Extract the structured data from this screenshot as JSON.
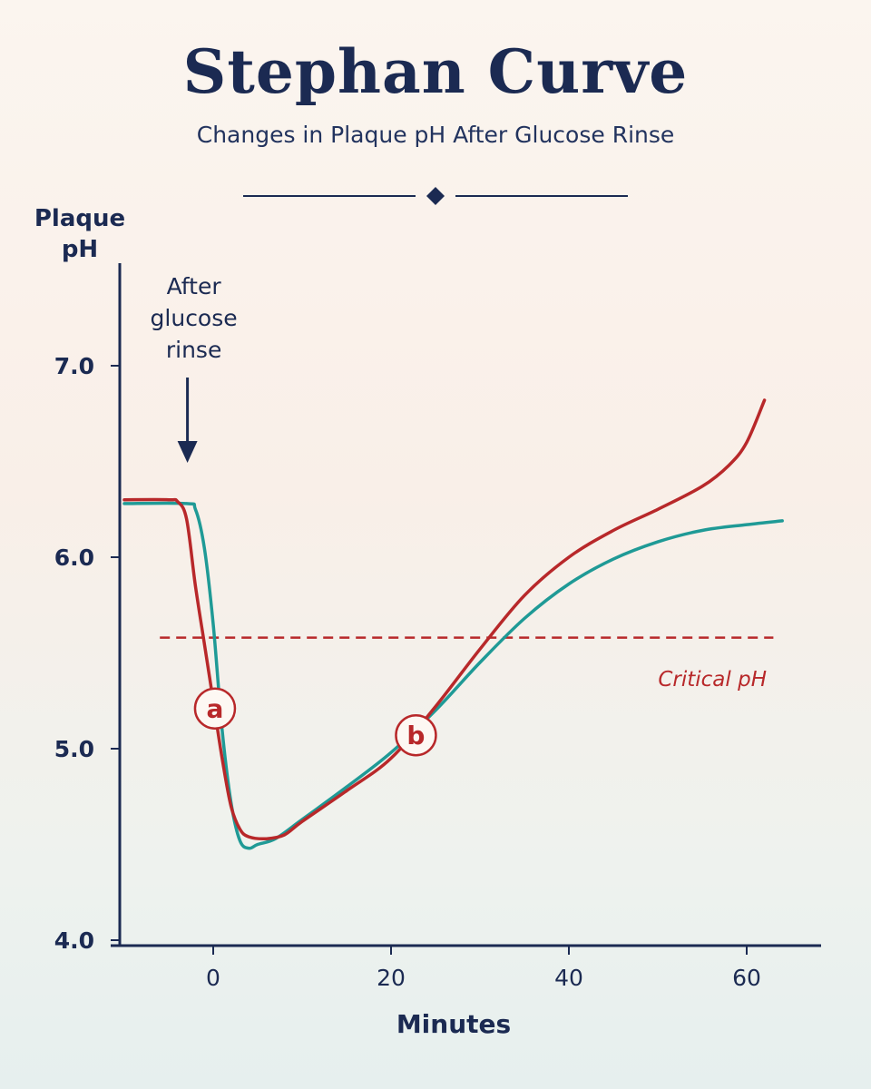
{
  "header": {
    "title": "Stephan Curve",
    "subtitle": "Changes in Plaque pH After Glucose Rinse"
  },
  "colors": {
    "navy": "#1b2a52",
    "red": "#b8282a",
    "teal": "#1f9a96"
  },
  "chart_data": {
    "type": "line",
    "ylabel_lines": [
      "Plaque",
      "pH"
    ],
    "xlabel": "Minutes",
    "xlim": [
      -10,
      64
    ],
    "ylim": [
      4.0,
      7.6
    ],
    "x_ticks": [
      0,
      20,
      40,
      60
    ],
    "y_ticks": [
      {
        "value": 4.0,
        "label": "4.0"
      },
      {
        "value": 5.0,
        "label": "5.0"
      },
      {
        "value": 6.0,
        "label": "6.0"
      },
      {
        "value": 7.0,
        "label": "7.0"
      }
    ],
    "series": [
      {
        "color": "#b8282a",
        "points": [
          [
            -10,
            6.3
          ],
          [
            -5,
            6.3
          ],
          [
            -4,
            6.29
          ],
          [
            -3,
            6.2
          ],
          [
            -2,
            5.85
          ],
          [
            -1,
            5.55
          ],
          [
            0,
            5.25
          ],
          [
            1,
            4.95
          ],
          [
            2,
            4.7
          ],
          [
            3,
            4.58
          ],
          [
            4,
            4.54
          ],
          [
            6,
            4.53
          ],
          [
            8,
            4.55
          ],
          [
            10,
            4.62
          ],
          [
            15,
            4.78
          ],
          [
            20,
            4.95
          ],
          [
            25,
            5.22
          ],
          [
            30,
            5.52
          ],
          [
            35,
            5.8
          ],
          [
            40,
            6.0
          ],
          [
            45,
            6.14
          ],
          [
            50,
            6.25
          ],
          [
            55,
            6.37
          ],
          [
            58,
            6.48
          ],
          [
            60,
            6.6
          ],
          [
            62,
            6.82
          ]
        ]
      },
      {
        "color": "#1f9a96",
        "points": [
          [
            -10,
            6.28
          ],
          [
            -3,
            6.28
          ],
          [
            -2,
            6.25
          ],
          [
            -1,
            6.05
          ],
          [
            0,
            5.65
          ],
          [
            1,
            5.1
          ],
          [
            2,
            4.72
          ],
          [
            3,
            4.52
          ],
          [
            4,
            4.48
          ],
          [
            5,
            4.5
          ],
          [
            7,
            4.53
          ],
          [
            10,
            4.63
          ],
          [
            15,
            4.8
          ],
          [
            20,
            4.98
          ],
          [
            25,
            5.2
          ],
          [
            30,
            5.45
          ],
          [
            35,
            5.68
          ],
          [
            40,
            5.86
          ],
          [
            45,
            5.99
          ],
          [
            50,
            6.08
          ],
          [
            55,
            6.14
          ],
          [
            60,
            6.17
          ],
          [
            64,
            6.19
          ]
        ]
      }
    ],
    "critical_ph": {
      "value": 5.58,
      "label": "Critical pH",
      "x_range": [
        -6,
        63
      ]
    },
    "annotations": [
      {
        "label": "a",
        "x": 0.2,
        "y": 5.21
      },
      {
        "label": "b",
        "x": 22.8,
        "y": 5.07
      }
    ],
    "arrow_note": {
      "lines": [
        "After",
        "glucose",
        "rinse"
      ],
      "x": -3,
      "value_top": 7.0,
      "value_bottom": 6.5
    }
  }
}
